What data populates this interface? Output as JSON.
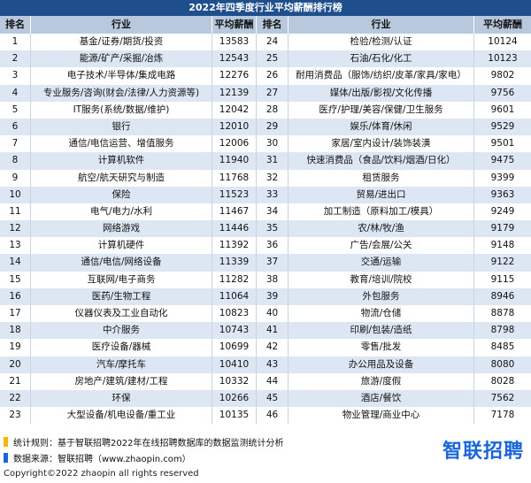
{
  "title": "2022年四季度行业平均薪酬排行榜",
  "headers": {
    "rank": "排名",
    "industry": "行业",
    "salary": "平均薪酬",
    "rank2": "排名",
    "industry2": "行业",
    "salary2": "平均薪酬"
  },
  "rows": [
    {
      "r1": "1",
      "i1": "基金/证券/期货/投资",
      "s1": "13583",
      "r2": "24",
      "i2": "检验/检测/认证",
      "s2": "10124"
    },
    {
      "r1": "2",
      "i1": "能源/矿产/采掘/冶炼",
      "s1": "12543",
      "r2": "25",
      "i2": "石油/石化/化工",
      "s2": "10123"
    },
    {
      "r1": "3",
      "i1": "电子技术/半导体/集成电路",
      "s1": "12276",
      "r2": "26",
      "i2": "耐用消费品（服饰/纺织/皮革/家具/家电）",
      "s2": "9802"
    },
    {
      "r1": "4",
      "i1": "专业服务/咨询(财会/法律/人力资源等)",
      "s1": "12139",
      "r2": "27",
      "i2": "媒体/出版/影视/文化传播",
      "s2": "9756"
    },
    {
      "r1": "5",
      "i1": "IT服务(系统/数据/维护)",
      "s1": "12042",
      "r2": "28",
      "i2": "医疗/护理/美容/保健/卫生服务",
      "s2": "9601"
    },
    {
      "r1": "6",
      "i1": "银行",
      "s1": "12010",
      "r2": "29",
      "i2": "娱乐/体育/休闲",
      "s2": "9529"
    },
    {
      "r1": "7",
      "i1": "通信/电信运营、增值服务",
      "s1": "12006",
      "r2": "30",
      "i2": "家居/室内设计/装饰装潢",
      "s2": "9501"
    },
    {
      "r1": "8",
      "i1": "计算机软件",
      "s1": "11940",
      "r2": "31",
      "i2": "快速消费品（食品/饮料/烟酒/日化）",
      "s2": "9475"
    },
    {
      "r1": "9",
      "i1": "航空/航天研究与制造",
      "s1": "11768",
      "r2": "32",
      "i2": "租赁服务",
      "s2": "9399"
    },
    {
      "r1": "10",
      "i1": "保险",
      "s1": "11523",
      "r2": "33",
      "i2": "贸易/进出口",
      "s2": "9363"
    },
    {
      "r1": "11",
      "i1": "电气/电力/水利",
      "s1": "11467",
      "r2": "34",
      "i2": "加工制造（原料加工/模具）",
      "s2": "9249"
    },
    {
      "r1": "12",
      "i1": "网络游戏",
      "s1": "11446",
      "r2": "35",
      "i2": "农/林/牧/渔",
      "s2": "9179"
    },
    {
      "r1": "13",
      "i1": "计算机硬件",
      "s1": "11392",
      "r2": "36",
      "i2": "广告/会展/公关",
      "s2": "9148"
    },
    {
      "r1": "14",
      "i1": "通信/电信/网络设备",
      "s1": "11339",
      "r2": "37",
      "i2": "交通/运输",
      "s2": "9122"
    },
    {
      "r1": "15",
      "i1": "互联网/电子商务",
      "s1": "11282",
      "r2": "38",
      "i2": "教育/培训/院校",
      "s2": "9115"
    },
    {
      "r1": "16",
      "i1": "医药/生物工程",
      "s1": "11064",
      "r2": "39",
      "i2": "外包服务",
      "s2": "8946"
    },
    {
      "r1": "17",
      "i1": "仪器仪表及工业自动化",
      "s1": "10823",
      "r2": "40",
      "i2": "物流/仓储",
      "s2": "8878"
    },
    {
      "r1": "18",
      "i1": "中介服务",
      "s1": "10743",
      "r2": "41",
      "i2": "印刷/包装/造纸",
      "s2": "8798"
    },
    {
      "r1": "19",
      "i1": "医疗设备/器械",
      "s1": "10699",
      "r2": "42",
      "i2": "零售/批发",
      "s2": "8485"
    },
    {
      "r1": "20",
      "i1": "汽车/摩托车",
      "s1": "10410",
      "r2": "43",
      "i2": "办公用品及设备",
      "s2": "8080"
    },
    {
      "r1": "21",
      "i1": "房地产/建筑/建材/工程",
      "s1": "10332",
      "r2": "44",
      "i2": "旅游/度假",
      "s2": "8028"
    },
    {
      "r1": "22",
      "i1": "环保",
      "s1": "10266",
      "r2": "45",
      "i2": "酒店/餐饮",
      "s2": "7562"
    },
    {
      "r1": "23",
      "i1": "大型设备/机电设备/重工业",
      "s1": "10135",
      "r2": "46",
      "i2": "物业管理/商业中心",
      "s2": "7178"
    }
  ],
  "footer": {
    "note1": "统计规则：基于智联招聘2022年在线招聘数据库的数据监测统计分析",
    "note2": "数据来源：智联招聘（www.zhaopin.com）",
    "copyright": "Copyright©2022 zhaopin all rights reserved",
    "logo_text": "智联招聘"
  },
  "colors": {
    "title_bg": "#1f4e8c",
    "header_bg": "#b8c9dd",
    "stripe_bg": "#dde7f3",
    "note1_mark": "#f5b800",
    "note2_mark": "#1a66d9",
    "logo": "#1a66d9"
  }
}
